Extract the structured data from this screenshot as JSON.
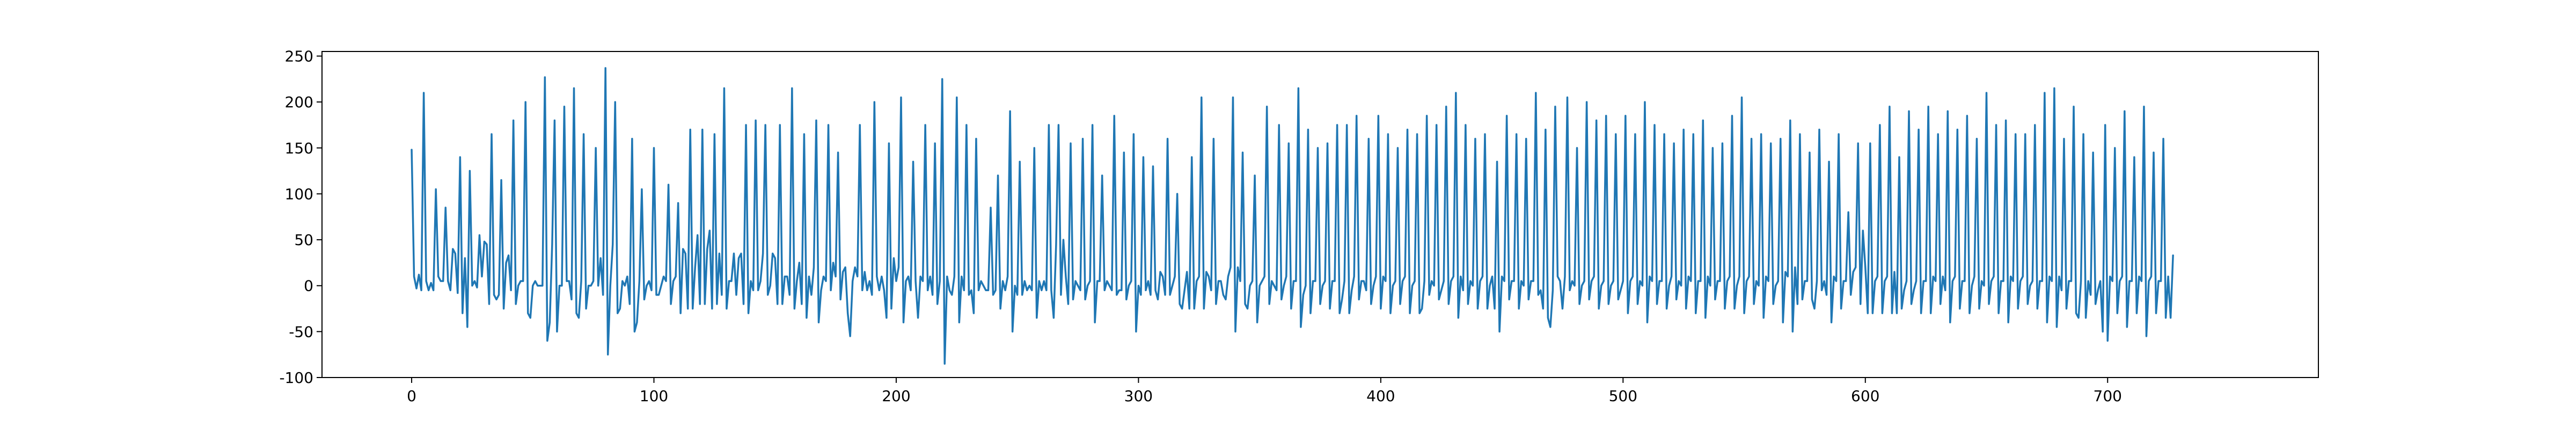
{
  "chart_data": {
    "type": "line",
    "title": "",
    "xlabel": "",
    "ylabel": "",
    "xlim": [
      -37,
      787
    ],
    "ylim": [
      -100,
      255
    ],
    "xticks": [
      0,
      100,
      200,
      300,
      400,
      500,
      600,
      700
    ],
    "yticks": [
      -100,
      -50,
      0,
      50,
      100,
      150,
      200,
      250
    ],
    "grid": false,
    "legend": "none",
    "series": [
      {
        "color": "#1f77b4",
        "x_start": 0,
        "x_step": 1,
        "values": [
          148,
          10,
          -3,
          12,
          -5,
          210,
          5,
          -5,
          3,
          -5,
          105,
          10,
          5,
          5,
          85,
          5,
          -5,
          40,
          35,
          -8,
          140,
          -30,
          30,
          -45,
          125,
          0,
          5,
          -2,
          55,
          10,
          48,
          45,
          -20,
          165,
          -10,
          -15,
          -10,
          115,
          -25,
          25,
          33,
          -5,
          180,
          -20,
          0,
          5,
          5,
          200,
          -30,
          -35,
          0,
          5,
          0,
          0,
          0,
          227,
          -60,
          -40,
          45,
          180,
          -50,
          0,
          0,
          195,
          5,
          5,
          -15,
          215,
          -30,
          -35,
          5,
          165,
          -25,
          0,
          0,
          5,
          150,
          0,
          30,
          -10,
          237,
          -75,
          0,
          45,
          200,
          -30,
          -25,
          5,
          0,
          10,
          -20,
          160,
          -50,
          -40,
          5,
          105,
          -15,
          0,
          5,
          -5,
          150,
          -10,
          -10,
          0,
          10,
          5,
          110,
          -20,
          5,
          10,
          90,
          -30,
          40,
          35,
          -25,
          170,
          -25,
          20,
          55,
          -20,
          170,
          -20,
          40,
          60,
          -25,
          165,
          -20,
          35,
          -10,
          215,
          -25,
          5,
          5,
          35,
          -10,
          30,
          35,
          -20,
          175,
          -30,
          5,
          -5,
          180,
          -5,
          5,
          35,
          175,
          -10,
          0,
          35,
          30,
          -20,
          175,
          -20,
          10,
          10,
          -10,
          215,
          -25,
          5,
          25,
          -20,
          165,
          -35,
          10,
          -10,
          20,
          180,
          -40,
          -5,
          10,
          5,
          175,
          -5,
          25,
          10,
          145,
          -15,
          15,
          20,
          -30,
          -55,
          5,
          20,
          10,
          175,
          -5,
          15,
          -5,
          5,
          -10,
          200,
          10,
          -5,
          10,
          -5,
          -35,
          155,
          -25,
          30,
          5,
          20,
          205,
          -40,
          5,
          10,
          -5,
          135,
          5,
          -35,
          10,
          5,
          175,
          -5,
          10,
          -10,
          155,
          -20,
          5,
          225,
          -85,
          10,
          -5,
          -10,
          10,
          205,
          -40,
          10,
          -5,
          175,
          -10,
          -5,
          -30,
          160,
          -5,
          5,
          0,
          -5,
          -5,
          85,
          -10,
          -5,
          120,
          -25,
          5,
          -5,
          10,
          190,
          -50,
          0,
          -10,
          135,
          -10,
          5,
          -5,
          0,
          -5,
          150,
          -35,
          5,
          -5,
          5,
          -5,
          175,
          -5,
          -35,
          45,
          175,
          -10,
          50,
          10,
          -20,
          155,
          -15,
          5,
          0,
          -5,
          160,
          -15,
          0,
          5,
          175,
          -40,
          5,
          5,
          120,
          -5,
          5,
          0,
          -5,
          185,
          -10,
          -5,
          -5,
          145,
          -15,
          0,
          5,
          165,
          -50,
          0,
          -10,
          140,
          -5,
          5,
          -10,
          130,
          -5,
          -15,
          15,
          10,
          -10,
          160,
          -10,
          0,
          10,
          100,
          -20,
          -25,
          -5,
          15,
          -25,
          140,
          -25,
          5,
          10,
          205,
          -25,
          15,
          10,
          -5,
          160,
          -20,
          5,
          5,
          -10,
          -15,
          10,
          20,
          205,
          -50,
          20,
          5,
          145,
          -20,
          -25,
          0,
          5,
          120,
          -40,
          0,
          5,
          10,
          195,
          -20,
          5,
          0,
          -5,
          175,
          -15,
          0,
          10,
          155,
          -25,
          5,
          5,
          215,
          -45,
          -10,
          0,
          170,
          -30,
          5,
          5,
          150,
          -20,
          0,
          5,
          155,
          -25,
          5,
          5,
          175,
          -30,
          -15,
          5,
          175,
          -30,
          -5,
          10,
          185,
          -15,
          5,
          5,
          -5,
          160,
          -20,
          0,
          10,
          185,
          -25,
          10,
          5,
          165,
          -30,
          0,
          5,
          150,
          -20,
          5,
          10,
          170,
          -30,
          0,
          5,
          165,
          -30,
          -25,
          5,
          185,
          -10,
          5,
          0,
          175,
          -15,
          -5,
          5,
          195,
          -20,
          5,
          10,
          210,
          -35,
          10,
          -5,
          175,
          -20,
          5,
          0,
          160,
          -25,
          5,
          10,
          165,
          -25,
          0,
          10,
          -25,
          135,
          -50,
          10,
          5,
          185,
          -15,
          5,
          5,
          165,
          -25,
          5,
          0,
          160,
          -15,
          5,
          5,
          210,
          -10,
          -5,
          -25,
          170,
          -35,
          -45,
          -5,
          195,
          10,
          5,
          -25,
          10,
          205,
          -5,
          5,
          0,
          150,
          -20,
          0,
          5,
          200,
          -15,
          5,
          10,
          180,
          -25,
          0,
          5,
          185,
          -20,
          0,
          5,
          165,
          -15,
          -5,
          5,
          185,
          -30,
          5,
          10,
          165,
          -20,
          5,
          0,
          200,
          -40,
          10,
          5,
          175,
          -20,
          5,
          5,
          165,
          -25,
          0,
          10,
          155,
          -15,
          5,
          0,
          170,
          -25,
          10,
          5,
          165,
          -30,
          5,
          5,
          180,
          -35,
          10,
          0,
          150,
          -15,
          5,
          5,
          155,
          -25,
          5,
          10,
          185,
          -25,
          0,
          10,
          205,
          -30,
          5,
          10,
          160,
          -20,
          5,
          0,
          165,
          -35,
          10,
          5,
          155,
          -20,
          0,
          5,
          160,
          -40,
          15,
          10,
          180,
          -50,
          20,
          -20,
          165,
          -15,
          5,
          5,
          145,
          -15,
          -25,
          5,
          170,
          -5,
          5,
          -10,
          135,
          -40,
          10,
          5,
          165,
          -25,
          5,
          5,
          80,
          -10,
          15,
          20,
          155,
          -20,
          60,
          20,
          -30,
          155,
          -30,
          5,
          10,
          175,
          -30,
          5,
          10,
          195,
          -30,
          15,
          -30,
          140,
          -25,
          -5,
          5,
          190,
          -20,
          -5,
          5,
          170,
          -30,
          5,
          5,
          195,
          -30,
          10,
          5,
          165,
          -20,
          10,
          -5,
          190,
          -40,
          5,
          10,
          170,
          -25,
          5,
          5,
          185,
          -30,
          0,
          10,
          160,
          -25,
          5,
          0,
          210,
          -20,
          5,
          10,
          175,
          -30,
          5,
          5,
          180,
          -40,
          10,
          5,
          165,
          -25,
          5,
          10,
          165,
          -20,
          0,
          5,
          175,
          -25,
          5,
          5,
          210,
          -40,
          10,
          5,
          215,
          -45,
          10,
          -5,
          160,
          -25,
          5,
          5,
          195,
          -30,
          -35,
          5,
          165,
          -35,
          5,
          -10,
          145,
          -20,
          -5,
          5,
          -50,
          175,
          -60,
          10,
          5,
          150,
          -30,
          5,
          10,
          190,
          -45,
          5,
          5,
          140,
          -30,
          10,
          5,
          195,
          -55,
          5,
          10,
          145,
          -30,
          5,
          5,
          160,
          -35,
          10,
          -35,
          33
        ]
      }
    ]
  }
}
